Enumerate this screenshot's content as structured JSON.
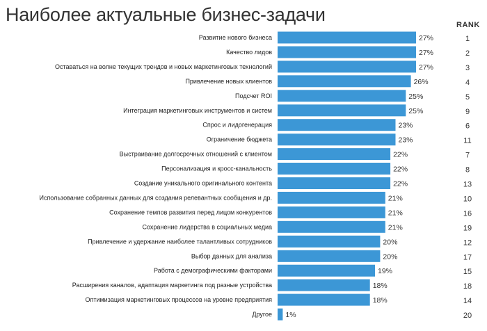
{
  "title": "Наиболее актуальные бизнес-задачи",
  "rank_header": "RANK",
  "colors": {
    "bar": "#3c97d6",
    "text": "#222222"
  },
  "chart_data": {
    "type": "bar",
    "orientation": "horizontal",
    "title": "Наиболее актуальные бизнес-задачи",
    "xlabel": "",
    "ylabel": "",
    "xlim": [
      0,
      27
    ],
    "grid": false,
    "categories": [
      "Развитие нового бизнеса",
      "Качество лидов",
      "Оставаться на волне текущих трендов и новых маркетинговых технологий",
      "Привлечение новых клиентов",
      "Подсчет ROI",
      "Интеграция маркетинговых инструментов и систем",
      "Спрос и лидогенерация",
      "Ограничение бюджета",
      "Выстраивание долгосрочных отношений с клиентом",
      "Персонализация и кросс-канальность",
      "Создание уникального оригинального контента",
      "Использование собранных данных для создания релевантных сообщения и др.",
      "Сохранение темпов развития перед лицом конкурентов",
      "Сохранение лидерства в социальных медиа",
      "Привлечение и удержание наиболее талантливых сотрудников",
      "Выбор данных для анализа",
      "Работа с демографическими факторами",
      "Расширения каналов, адаптация маркетинга под разные устройства",
      "Оптимизация маркетинговых процессов на уровне предприятия",
      "Другое"
    ],
    "values": [
      27,
      27,
      27,
      26,
      25,
      25,
      23,
      23,
      22,
      22,
      22,
      21,
      21,
      21,
      20,
      20,
      19,
      18,
      18,
      1
    ],
    "value_labels": [
      "27%",
      "27%",
      "27%",
      "26%",
      "25%",
      "25%",
      "23%",
      "23%",
      "22%",
      "22%",
      "22%",
      "21%",
      "21%",
      "21%",
      "20%",
      "20%",
      "19%",
      "18%",
      "18%",
      "1%"
    ],
    "ranks": [
      "1",
      "2",
      "3",
      "4",
      "5",
      "9",
      "6",
      "11",
      "7",
      "8",
      "13",
      "10",
      "16",
      "19",
      "12",
      "17",
      "15",
      "18",
      "14",
      "20"
    ]
  }
}
